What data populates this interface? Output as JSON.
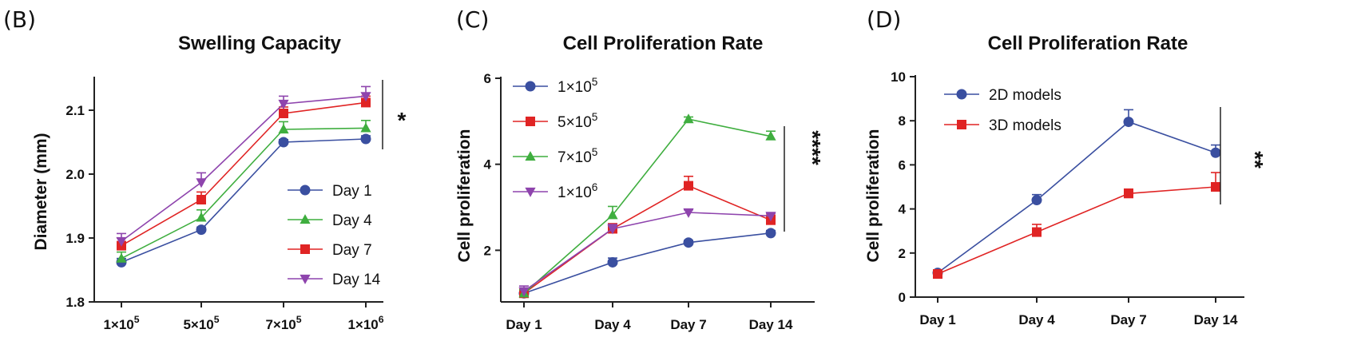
{
  "chart_data": [
    {
      "type": "line",
      "panel_label": "(B)",
      "title": "Swelling Capacity",
      "xlabel": "",
      "ylabel": "Diameter (mm)",
      "categories": [
        "1×10^5",
        "5×10^5",
        "7×10^5",
        "1×10^6"
      ],
      "category_labels": [
        {
          "base": "1×10",
          "exp": "5"
        },
        {
          "base": "5×10",
          "exp": "5"
        },
        {
          "base": "7×10",
          "exp": "5"
        },
        {
          "base": "1×10",
          "exp": "6"
        }
      ],
      "ylim": [
        1.8,
        2.15
      ],
      "yticks": [
        1.8,
        1.9,
        2.0,
        2.1
      ],
      "ytick_labels": [
        "1.8",
        "1.9",
        "2.0",
        "2.1"
      ],
      "series": [
        {
          "name": "Day 1",
          "color": "#3a4fa0",
          "marker": "circle",
          "values": [
            1.862,
            1.913,
            2.05,
            2.055
          ],
          "errors": [
            0.006,
            0.004,
            0.004,
            0.005
          ]
        },
        {
          "name": "Day 4",
          "color": "#3fae3f",
          "marker": "triangle-up",
          "values": [
            1.868,
            1.932,
            2.07,
            2.072
          ],
          "errors": [
            0.01,
            0.012,
            0.012,
            0.012
          ]
        },
        {
          "name": "Day 7",
          "color": "#e02424",
          "marker": "square",
          "values": [
            1.888,
            1.96,
            2.095,
            2.112
          ],
          "errors": [
            0.012,
            0.012,
            0.01,
            0.01
          ]
        },
        {
          "name": "Day 14",
          "color": "#8e44ad",
          "marker": "triangle-down",
          "values": [
            1.895,
            1.987,
            2.11,
            2.122
          ],
          "errors": [
            0.012,
            0.015,
            0.012,
            0.015
          ]
        }
      ],
      "legend_position": "bottom-right",
      "significance": "*"
    },
    {
      "type": "line",
      "panel_label": "(C)",
      "title": "Cell Proliferation Rate",
      "xlabel": "",
      "ylabel": "Cell proliferation",
      "categories": [
        "Day 1",
        "Day 4",
        "Day 7",
        "Day 14"
      ],
      "ylim": [
        0.8,
        6
      ],
      "yticks": [
        2,
        4,
        6
      ],
      "ytick_labels": [
        "2",
        "4",
        "6"
      ],
      "series": [
        {
          "name": "1×10^5",
          "label_base": "1×10",
          "label_exp": "5",
          "color": "#3a4fa0",
          "marker": "circle",
          "values": [
            1.0,
            1.72,
            2.18,
            2.4
          ],
          "errors": [
            0.08,
            0.1,
            0.05,
            0.06
          ]
        },
        {
          "name": "5×10^5",
          "label_base": "5×10",
          "label_exp": "5",
          "color": "#e02424",
          "marker": "square",
          "values": [
            1.0,
            2.5,
            3.5,
            2.7
          ],
          "errors": [
            0.08,
            0.12,
            0.22,
            0.12
          ]
        },
        {
          "name": "7×10^5",
          "label_base": "7×10",
          "label_exp": "5",
          "color": "#3fae3f",
          "marker": "triangle-up",
          "values": [
            1.0,
            2.82,
            5.05,
            4.65
          ],
          "errors": [
            0.08,
            0.2,
            0.05,
            0.12
          ]
        },
        {
          "name": "1×10^6",
          "label_base": "1×10",
          "label_exp": "6",
          "color": "#8e44ad",
          "marker": "triangle-down",
          "values": [
            1.05,
            2.5,
            2.88,
            2.8
          ],
          "errors": [
            0.12,
            0.1,
            0.06,
            0.06
          ]
        }
      ],
      "legend_position": "top-left",
      "significance": "****"
    },
    {
      "type": "line",
      "panel_label": "(D)",
      "title": "Cell Proliferation Rate",
      "xlabel": "",
      "ylabel": "Cell proliferation",
      "categories": [
        "Day 1",
        "Day 4",
        "Day 7",
        "Day 14"
      ],
      "ylim": [
        0,
        10
      ],
      "yticks": [
        0,
        2,
        4,
        6,
        8,
        10
      ],
      "ytick_labels": [
        "0",
        "2",
        "4",
        "6",
        "8",
        "10"
      ],
      "series": [
        {
          "name": "2D models",
          "color": "#3a4fa0",
          "marker": "circle",
          "values": [
            1.1,
            4.4,
            7.95,
            6.55
          ],
          "errors": [
            0.1,
            0.25,
            0.55,
            0.35
          ]
        },
        {
          "name": "3D models",
          "color": "#e02424",
          "marker": "square",
          "values": [
            1.05,
            2.95,
            4.7,
            5.0
          ],
          "errors": [
            0.1,
            0.35,
            0.2,
            0.65
          ]
        }
      ],
      "legend_position": "top-left",
      "significance": "**"
    }
  ]
}
